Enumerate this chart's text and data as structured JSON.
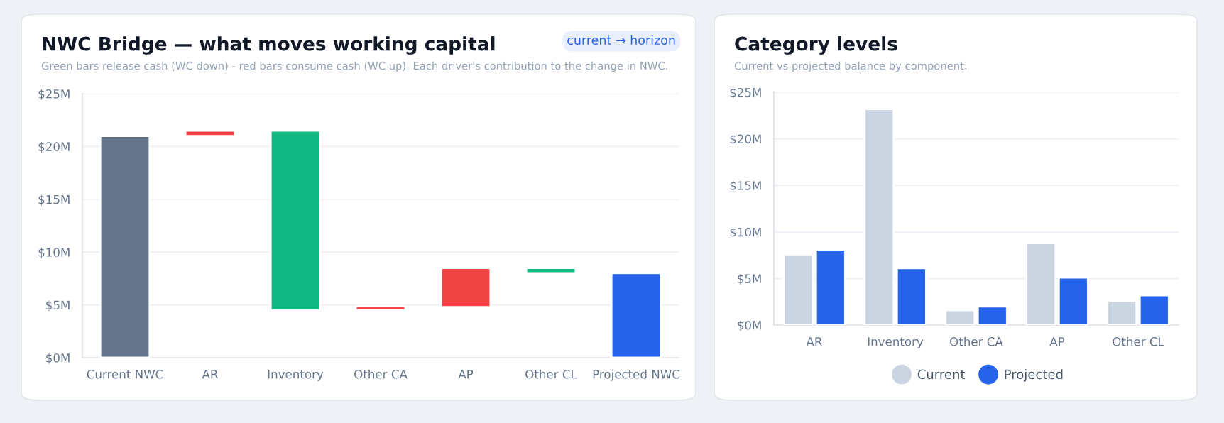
{
  "chart_data": [
    {
      "type": "bar",
      "title": "NWC Bridge — what moves working capital",
      "subtitle": "Green bars release cash (WC down) - red bars consume cash (WC up). Each driver's contribution to the change in NWC.",
      "annotations": [
        "current → horizon"
      ],
      "categories": [
        "Current NWC",
        "AR",
        "Inventory",
        "Other CA",
        "AP",
        "Other CL",
        "Projected NWC"
      ],
      "values": [
        21.0,
        0.5,
        17.0,
        0.4,
        3.7,
        0.5,
        8.0
      ],
      "base": [
        0,
        21.0,
        4.5,
        4.5,
        4.8,
        8.0,
        0
      ],
      "colors": [
        "#64748b",
        "#ef4444",
        "#10b981",
        "#ef4444",
        "#ef4444",
        "#10b981",
        "#2563eb"
      ],
      "ylim": [
        0,
        25
      ],
      "yticks": [
        {
          "value": 0,
          "label": "$0M"
        },
        {
          "value": 5,
          "label": "$5M"
        },
        {
          "value": 10,
          "label": "$10M"
        },
        {
          "value": 15,
          "label": "$15M"
        },
        {
          "value": 20,
          "label": "$20M"
        },
        {
          "value": 25,
          "label": "$25M"
        }
      ],
      "grid": "y"
    },
    {
      "type": "bar",
      "title": "Category levels",
      "subtitle": "Current vs projected balance by component.",
      "categories": [
        "AR",
        "Inventory",
        "Other CA",
        "AP",
        "Other CL"
      ],
      "series": [
        {
          "name": "Current",
          "color": "#cbd5e1",
          "values": [
            7.6,
            23.2,
            1.6,
            8.8,
            2.6
          ]
        },
        {
          "name": "Projected",
          "color": "#2563eb",
          "values": [
            8.1,
            6.1,
            2.0,
            5.1,
            3.2
          ]
        }
      ],
      "ylim": [
        0,
        25
      ],
      "yticks": [
        {
          "value": 0,
          "label": "$0M"
        },
        {
          "value": 5,
          "label": "$5M"
        },
        {
          "value": 10,
          "label": "$10M"
        },
        {
          "value": 15,
          "label": "$15M"
        },
        {
          "value": 20,
          "label": "$20M"
        },
        {
          "value": 25,
          "label": "$25M"
        }
      ],
      "grid": "y",
      "legend": "bottom"
    }
  ]
}
